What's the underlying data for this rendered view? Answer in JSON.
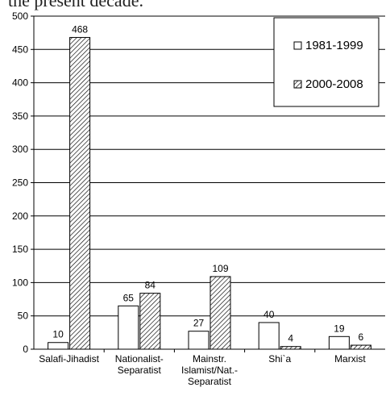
{
  "header_text": "the present decade.",
  "chart_data": {
    "type": "bar",
    "categories": [
      [
        "Salafi-Jihadist"
      ],
      [
        "Nationalist-",
        "Separatist"
      ],
      [
        "Mainstr.",
        "Islamist/Nat.-",
        "Separatist"
      ],
      [
        "Shi`a"
      ],
      [
        "Marxist"
      ]
    ],
    "series": [
      {
        "name": "1981-1999",
        "values": [
          10,
          65,
          27,
          40,
          19
        ],
        "pattern": "white"
      },
      {
        "name": "2000-2008",
        "values": [
          468,
          84,
          109,
          4,
          6
        ],
        "pattern": "hatched"
      }
    ],
    "ylim": [
      0,
      500
    ],
    "yticks": [
      0,
      50,
      100,
      150,
      200,
      250,
      300,
      350,
      400,
      450,
      500
    ],
    "grid": true,
    "legend_position": "top-right",
    "colors": {
      "bar_fill": "#ffffff",
      "bar_stroke": "#000000",
      "hatch": "#000000",
      "grid": "#000000"
    }
  }
}
